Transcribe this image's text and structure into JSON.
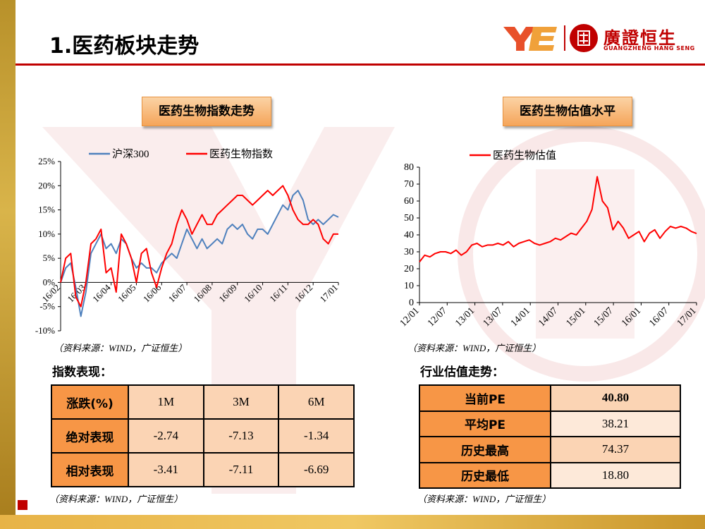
{
  "title": "1.医药板块走势",
  "logo": {
    "name": "廣證恒生",
    "sub": "GUANGZHENG HANG SENG"
  },
  "left_chart_label": "医药生物指数走势",
  "right_chart_label": "医药生物估值水平",
  "source_text": "（资料来源：WIND，广证恒生）",
  "index_section_title": "指数表现：",
  "valuation_section_title": "行业估值走势：",
  "perf_table": {
    "header": [
      "涨跌(%)",
      "1M",
      "3M",
      "6M"
    ],
    "rows": [
      {
        "label": "绝对表现",
        "values": [
          "-2.74",
          "-7.13",
          "-1.34"
        ]
      },
      {
        "label": "相对表现",
        "values": [
          "-3.41",
          "-7.11",
          "-6.69"
        ]
      }
    ]
  },
  "val_table": {
    "rows": [
      {
        "label": "当前PE",
        "value": "40.80"
      },
      {
        "label": "平均PE",
        "value": "38.21"
      },
      {
        "label": "历史最高",
        "value": "74.37"
      },
      {
        "label": "历史最低",
        "value": "18.80"
      }
    ]
  },
  "colors": {
    "hs300": "#4f81bd",
    "pharma": "#ff0000",
    "accent": "#c00000",
    "table_header": "#f79646",
    "table_cell": "#fbd4b4"
  },
  "chart_data": [
    {
      "type": "line",
      "title": "医药生物指数走势",
      "xlabel": "",
      "ylabel": "",
      "ylim": [
        -10,
        25
      ],
      "yticks": [
        -10,
        -5,
        0,
        5,
        10,
        15,
        20,
        25
      ],
      "ytick_labels": [
        "-10%",
        "-5%",
        "0%",
        "5%",
        "10%",
        "15%",
        "20%",
        "25%"
      ],
      "x_labels": [
        "16/02",
        "16/03",
        "16/04",
        "16/05",
        "16/06",
        "16/07",
        "16/08",
        "16/09",
        "16/10",
        "16/11",
        "16/12",
        "17/01"
      ],
      "legend": "top",
      "series": [
        {
          "name": "沪深300",
          "color": "#4f81bd",
          "values": [
            0,
            3,
            4,
            -1,
            -7,
            -2,
            6,
            8,
            10,
            7,
            8,
            6,
            9,
            8,
            5,
            3,
            4,
            3,
            3,
            2,
            4,
            5,
            6,
            5,
            8,
            11,
            9,
            7,
            9,
            7,
            8,
            9,
            8,
            11,
            12,
            11,
            12,
            10,
            9,
            11,
            11,
            10,
            12,
            14,
            16,
            15,
            18,
            19,
            17,
            13,
            12,
            13,
            12,
            13,
            14,
            13.5
          ]
        },
        {
          "name": "医药生物指数",
          "color": "#ff0000",
          "values": [
            0,
            5,
            6,
            -3,
            -5,
            0,
            8,
            9,
            11,
            2,
            3,
            -2,
            10,
            8,
            5,
            0,
            6,
            7,
            2,
            -1,
            3,
            6,
            8,
            12,
            15,
            13,
            10,
            12,
            14,
            12,
            12,
            14,
            15,
            16,
            17,
            18,
            18,
            17,
            16,
            17,
            18,
            19,
            18,
            19,
            20,
            18,
            15,
            13,
            12,
            12,
            13,
            12,
            9,
            8,
            10,
            10
          ]
        }
      ]
    },
    {
      "type": "line",
      "title": "医药生物估值水平",
      "xlabel": "",
      "ylabel": "",
      "ylim": [
        0,
        80
      ],
      "yticks": [
        0,
        10,
        20,
        30,
        40,
        50,
        60,
        70,
        80
      ],
      "x_labels": [
        "12/01",
        "12/07",
        "13/01",
        "13/07",
        "14/01",
        "14/07",
        "15/01",
        "15/07",
        "16/01",
        "16/07",
        "17/01"
      ],
      "legend": "top",
      "series": [
        {
          "name": "医药生物估值",
          "color": "#ff0000",
          "values": [
            24,
            28,
            27,
            29,
            30,
            30,
            29,
            31,
            28,
            30,
            34,
            35,
            33,
            34,
            34,
            35,
            34,
            36,
            33,
            35,
            36,
            37,
            35,
            34,
            35,
            36,
            38,
            37,
            39,
            41,
            40,
            44,
            48,
            55,
            74.37,
            60,
            56,
            43,
            48,
            44,
            38,
            40,
            42,
            36,
            41,
            43,
            38,
            42,
            45,
            44,
            45,
            44,
            42,
            40.8
          ]
        }
      ]
    }
  ]
}
